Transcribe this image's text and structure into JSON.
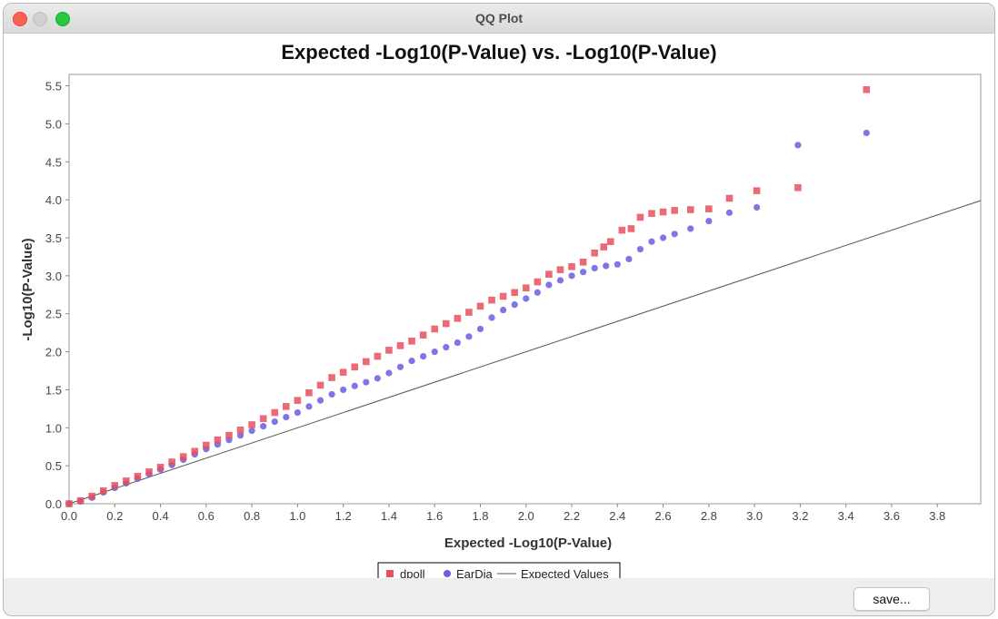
{
  "window": {
    "title": "QQ Plot",
    "save_label": "save..."
  },
  "colors": {
    "dpoll": "#e8505e",
    "eardia": "#6b5ce0",
    "expected": "#555555"
  },
  "chart_data": {
    "type": "scatter",
    "title": "Expected -Log10(P-Value) vs. -Log10(P-Value)",
    "xlabel": "Expected -Log10(P-Value)",
    "ylabel": "-Log10(P-Value)",
    "xlim": [
      0,
      3.99
    ],
    "ylim": [
      0,
      5.65
    ],
    "xticks": [
      "0.0",
      "0.2",
      "0.4",
      "0.6",
      "0.8",
      "1.0",
      "1.2",
      "1.4",
      "1.6",
      "1.8",
      "2.0",
      "2.2",
      "2.4",
      "2.6",
      "2.8",
      "3.0",
      "3.2",
      "3.4",
      "3.6",
      "3.8"
    ],
    "yticks": [
      "0.0",
      "0.5",
      "1.0",
      "1.5",
      "2.0",
      "2.5",
      "3.0",
      "3.5",
      "4.0",
      "4.5",
      "5.0",
      "5.5"
    ],
    "legend_position": "bottom-center",
    "grid": false,
    "series": [
      {
        "name": "dpoll",
        "marker": "square",
        "x": [
          0.0,
          0.05,
          0.1,
          0.15,
          0.2,
          0.25,
          0.3,
          0.35,
          0.4,
          0.45,
          0.5,
          0.55,
          0.6,
          0.65,
          0.7,
          0.75,
          0.8,
          0.85,
          0.9,
          0.95,
          1.0,
          1.05,
          1.1,
          1.15,
          1.2,
          1.25,
          1.3,
          1.35,
          1.4,
          1.45,
          1.5,
          1.55,
          1.6,
          1.65,
          1.7,
          1.75,
          1.8,
          1.85,
          1.9,
          1.95,
          2.0,
          2.05,
          2.1,
          2.15,
          2.2,
          2.25,
          2.3,
          2.34,
          2.37,
          2.42,
          2.46,
          2.5,
          2.55,
          2.6,
          2.65,
          2.72,
          2.8,
          2.89,
          3.01,
          3.19,
          3.49
        ],
        "y": [
          0.0,
          0.04,
          0.1,
          0.17,
          0.24,
          0.3,
          0.36,
          0.42,
          0.48,
          0.55,
          0.62,
          0.69,
          0.77,
          0.84,
          0.9,
          0.97,
          1.04,
          1.12,
          1.2,
          1.28,
          1.36,
          1.46,
          1.56,
          1.66,
          1.73,
          1.8,
          1.87,
          1.94,
          2.02,
          2.08,
          2.14,
          2.22,
          2.3,
          2.37,
          2.44,
          2.52,
          2.6,
          2.68,
          2.73,
          2.78,
          2.84,
          2.92,
          3.02,
          3.08,
          3.12,
          3.18,
          3.3,
          3.38,
          3.45,
          3.6,
          3.62,
          3.77,
          3.82,
          3.84,
          3.86,
          3.87,
          3.88,
          4.02,
          4.12,
          4.16,
          5.45
        ]
      },
      {
        "name": "EarDia",
        "marker": "circle",
        "x": [
          0.0,
          0.05,
          0.1,
          0.15,
          0.2,
          0.25,
          0.3,
          0.35,
          0.4,
          0.45,
          0.5,
          0.55,
          0.6,
          0.65,
          0.7,
          0.75,
          0.8,
          0.85,
          0.9,
          0.95,
          1.0,
          1.05,
          1.1,
          1.15,
          1.2,
          1.25,
          1.3,
          1.35,
          1.4,
          1.45,
          1.5,
          1.55,
          1.6,
          1.65,
          1.7,
          1.75,
          1.8,
          1.85,
          1.9,
          1.95,
          2.0,
          2.05,
          2.1,
          2.15,
          2.2,
          2.25,
          2.3,
          2.35,
          2.4,
          2.45,
          2.5,
          2.55,
          2.6,
          2.65,
          2.72,
          2.8,
          2.89,
          3.01,
          3.19,
          3.49
        ],
        "y": [
          0.0,
          0.03,
          0.08,
          0.15,
          0.21,
          0.27,
          0.33,
          0.39,
          0.45,
          0.51,
          0.58,
          0.65,
          0.72,
          0.78,
          0.84,
          0.9,
          0.96,
          1.02,
          1.08,
          1.14,
          1.2,
          1.28,
          1.36,
          1.44,
          1.5,
          1.55,
          1.6,
          1.65,
          1.72,
          1.8,
          1.88,
          1.94,
          2.0,
          2.06,
          2.12,
          2.2,
          2.3,
          2.45,
          2.55,
          2.62,
          2.7,
          2.78,
          2.88,
          2.94,
          3.0,
          3.05,
          3.1,
          3.13,
          3.15,
          3.22,
          3.35,
          3.45,
          3.5,
          3.55,
          3.62,
          3.72,
          3.83,
          3.9,
          4.72,
          4.88
        ]
      },
      {
        "name": "Expected Values",
        "marker": "line",
        "x": [
          0,
          3.99
        ],
        "y": [
          0,
          3.99
        ]
      }
    ]
  }
}
